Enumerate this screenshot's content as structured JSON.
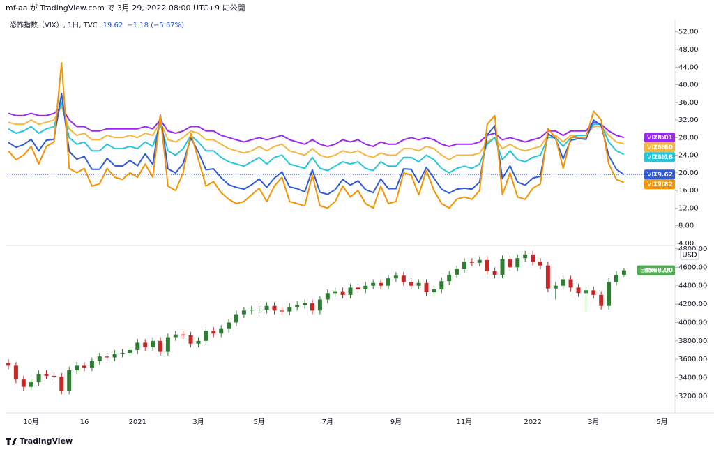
{
  "header": {
    "text": "mf-aa が TradingView.com で 3月 29, 2022 08:00 UTC+9 に公開"
  },
  "logo": "TradingView",
  "chart_data": [
    {
      "type": "line",
      "legend": {
        "title": "恐怖指数（VIX）, 1日, TVC",
        "last": "19.62",
        "change": "−1.18 (−5.67%)"
      },
      "categories": [
        null,
        null,
        null,
        "10月",
        null,
        null,
        null,
        null,
        null,
        null,
        "16",
        null,
        null,
        null,
        null,
        null,
        null,
        "2021",
        null,
        null,
        null,
        null,
        null,
        null,
        null,
        "3月",
        null,
        null,
        null,
        null,
        null,
        null,
        null,
        "5月",
        null,
        null,
        null,
        null,
        null,
        null,
        null,
        null,
        "7月",
        null,
        null,
        null,
        null,
        null,
        null,
        null,
        null,
        "9月",
        null,
        null,
        null,
        null,
        null,
        null,
        null,
        null,
        "11月",
        null,
        null,
        null,
        null,
        null,
        null,
        null,
        null,
        "2022",
        null,
        null,
        null,
        null,
        null,
        null,
        null,
        "3月",
        null,
        null,
        null,
        null,
        null,
        null,
        null,
        null,
        "5月",
        null,
        null,
        null
      ],
      "ylim": [
        3.5,
        53.7
      ],
      "yticks": [
        {
          "value": 4,
          "label": "4.00"
        },
        {
          "value": 8,
          "label": "8.00"
        },
        {
          "value": 12,
          "label": "12.00"
        },
        {
          "value": 16,
          "label": "16.00"
        },
        {
          "value": 20,
          "label": "20.00"
        },
        {
          "value": 24,
          "label": "24.00"
        },
        {
          "value": 28,
          "label": "28.00"
        },
        {
          "value": 32,
          "label": "32.00"
        },
        {
          "value": 36,
          "label": "36.00"
        },
        {
          "value": 40,
          "label": "40.00"
        },
        {
          "value": 44,
          "label": "44.00"
        },
        {
          "value": 48,
          "label": "48.00"
        },
        {
          "value": 52,
          "label": "52.00"
        }
      ],
      "series": [
        {
          "name": "VIX1Y",
          "badge": "28.01",
          "color": "#9c27f0",
          "values": [
            33.5,
            33,
            33,
            33.5,
            33,
            33,
            33.5,
            35,
            32,
            30.5,
            30.5,
            29.5,
            29.5,
            30,
            30,
            30,
            30,
            30,
            30.5,
            30,
            32,
            29.5,
            29,
            29.5,
            30.5,
            30.5,
            29.5,
            29.5,
            28.5,
            28,
            27.5,
            27,
            27.5,
            28,
            27.5,
            28,
            28.5,
            27.5,
            27,
            26.5,
            27.5,
            26.5,
            26,
            26.5,
            27.5,
            27,
            27.5,
            26.5,
            26,
            27,
            26.5,
            26.5,
            27.5,
            28,
            27.5,
            28,
            27.5,
            26.5,
            26,
            26.5,
            26.5,
            26.5,
            27,
            28.5,
            29,
            27.5,
            28,
            27.5,
            27,
            27.5,
            28,
            29.5,
            29.5,
            28.5,
            29.5,
            29.5,
            29.5,
            31.5,
            31,
            29.5,
            28.5,
            28.01,
            null,
            null,
            null,
            null,
            null,
            null,
            null,
            null
          ]
        },
        {
          "name": "VIX6M",
          "badge": "26.60",
          "color": "#f5b53f",
          "values": [
            31.5,
            31,
            31,
            32,
            31,
            31.5,
            32,
            35,
            30,
            28.5,
            29,
            27.5,
            27.5,
            28.5,
            28,
            28,
            28.5,
            28,
            29,
            28.5,
            31.5,
            27.5,
            27,
            28,
            29.5,
            29,
            27.5,
            27.5,
            26.5,
            25.5,
            25,
            24.5,
            25,
            26,
            25,
            26,
            26.5,
            25,
            24.5,
            24,
            25.5,
            24,
            23.5,
            24,
            25,
            24.5,
            25,
            24,
            23.5,
            24.5,
            24,
            24,
            25.5,
            25.5,
            25,
            26,
            25.5,
            24,
            23,
            24,
            24,
            24,
            24.5,
            27,
            28,
            25.5,
            26.5,
            25.5,
            25,
            25.5,
            26,
            28.5,
            28.5,
            27,
            28.5,
            28.5,
            28.5,
            30.5,
            30.5,
            28.5,
            27,
            26.6,
            null,
            null,
            null,
            null,
            null,
            null,
            null,
            null
          ]
        },
        {
          "name": "VIX3M",
          "badge": "24.18",
          "color": "#26c6da",
          "values": [
            30,
            29,
            29.5,
            30.5,
            29,
            30,
            30.5,
            36,
            28,
            26.5,
            27,
            25,
            25,
            26.5,
            25.5,
            25.5,
            26,
            25.5,
            27,
            26,
            31,
            25,
            24,
            25.5,
            28.5,
            27,
            25,
            25,
            23.5,
            22.5,
            22,
            21.5,
            22.5,
            23.5,
            22,
            23.5,
            24,
            22,
            21.5,
            21,
            23.5,
            21,
            20.5,
            21.5,
            22.5,
            22,
            22.5,
            21,
            20.5,
            22.5,
            21.5,
            21.5,
            23.5,
            23.5,
            22.5,
            24,
            23,
            21,
            20,
            21,
            21.5,
            21,
            22,
            26.5,
            28,
            23,
            25,
            23,
            22.5,
            23.5,
            24,
            28,
            28,
            26,
            28,
            28.5,
            28.5,
            31,
            31,
            27,
            25,
            24.18,
            null,
            null,
            null,
            null,
            null,
            null,
            null,
            null
          ]
        },
        {
          "name": "VIX",
          "badge": "19.62",
          "color": "#2f5bd9",
          "values": [
            26.9,
            25.8,
            26.4,
            27.6,
            25,
            27.4,
            27.6,
            38,
            24.9,
            23.1,
            23.7,
            20.8,
            20.8,
            23.3,
            21.6,
            21.5,
            22.8,
            21.6,
            24.3,
            21.9,
            33.1,
            20.9,
            19.97,
            22.1,
            27.9,
            24.7,
            20.7,
            20.9,
            18.9,
            17.3,
            16.7,
            16.3,
            17.3,
            18.6,
            16.7,
            18.8,
            20.2,
            16.8,
            16.4,
            15.7,
            20.7,
            15.6,
            15.1,
            16.2,
            18.5,
            17.2,
            18.2,
            16.2,
            15.5,
            18.6,
            16.4,
            16.4,
            20.9,
            20.8,
            17.8,
            21.2,
            18.8,
            16.3,
            15.4,
            16.3,
            16.5,
            16.3,
            17.9,
            28.6,
            30.7,
            18.7,
            21.6,
            17.9,
            17.2,
            18.8,
            19.2,
            28.9,
            27.7,
            23.2,
            27.4,
            27.8,
            27.6,
            31.98,
            30.8,
            23.9,
            20.8,
            19.62,
            null,
            null,
            null,
            null,
            null,
            null,
            null,
            null
          ]
        },
        {
          "name": "VIX9D",
          "badge": "17.82",
          "color": "#f59300",
          "values": [
            25,
            23,
            24,
            26,
            22,
            26,
            27,
            45,
            21,
            20,
            21,
            17,
            17.5,
            21,
            19,
            18.5,
            20,
            19,
            22,
            19,
            33,
            17,
            16,
            20,
            29,
            23,
            17,
            18,
            15.5,
            14,
            13,
            13.5,
            15,
            16.5,
            13.5,
            17,
            19,
            13.5,
            13,
            12.5,
            19.5,
            12.5,
            12,
            13.5,
            17,
            14.5,
            16,
            13,
            12,
            17,
            13,
            13.5,
            20,
            19.5,
            15,
            20.5,
            16,
            13,
            12,
            14,
            14.5,
            14,
            16,
            31,
            33,
            15,
            20,
            14.5,
            14,
            16.5,
            17.5,
            30,
            28,
            21,
            28,
            28,
            28,
            34,
            32,
            22,
            18.5,
            17.82,
            null,
            null,
            null,
            null,
            null,
            null,
            null,
            null
          ]
        }
      ]
    },
    {
      "type": "candlestick",
      "unit": "USD",
      "ylim": [
        3017,
        4838
      ],
      "yticks": [
        {
          "value": 3200,
          "label": "3200.00"
        },
        {
          "value": 3400,
          "label": "3400.00"
        },
        {
          "value": 3600,
          "label": "3600.00"
        },
        {
          "value": 3800,
          "label": "3800.00"
        },
        {
          "value": 4000,
          "label": "4000.00"
        },
        {
          "value": 4200,
          "label": "4200.00"
        },
        {
          "value": 4400,
          "label": "4400.00"
        },
        {
          "value": 4600,
          "label": "4600.00"
        },
        {
          "value": 4800,
          "label": "4800.00"
        }
      ],
      "series": [
        {
          "name": "ESM2022",
          "badge": "4568.00",
          "color": "#4caf50",
          "up_color": "#2e7d32",
          "down_color": "#c62828",
          "open": [
            3560,
            3530,
            3380,
            3300,
            3350,
            3440,
            3420,
            3410,
            3260,
            3480,
            3530,
            3510,
            3580,
            3630,
            3620,
            3660,
            3670,
            3700,
            3780,
            3730,
            3800,
            3680,
            3840,
            3870,
            3860,
            3770,
            3800,
            3910,
            3880,
            3930,
            4000,
            4090,
            4130,
            4140,
            4140,
            4180,
            4130,
            4120,
            4170,
            4190,
            4210,
            4130,
            4250,
            4320,
            4340,
            4300,
            4380,
            4360,
            4400,
            4430,
            4400,
            4480,
            4510,
            4440,
            4400,
            4430,
            4330,
            4360,
            4450,
            4520,
            4580,
            4660,
            4650,
            4680,
            4560,
            4520,
            4690,
            4600,
            4700,
            4740,
            4660,
            4620,
            4370,
            4400,
            4470,
            4380,
            4320,
            4350,
            4300,
            4180,
            4440,
            4520,
            null,
            null,
            null,
            null,
            null,
            null,
            null,
            null
          ],
          "high": [
            3600,
            3570,
            3420,
            3390,
            3480,
            3480,
            3460,
            3450,
            3520,
            3570,
            3570,
            3620,
            3670,
            3670,
            3700,
            3710,
            3740,
            3820,
            3820,
            3840,
            3840,
            3880,
            3910,
            3910,
            3900,
            3840,
            3950,
            3950,
            3970,
            4040,
            4130,
            4170,
            4180,
            4180,
            4220,
            4220,
            4170,
            4210,
            4230,
            4250,
            4250,
            4290,
            4360,
            4380,
            4380,
            4420,
            4420,
            4440,
            4470,
            4470,
            4520,
            4550,
            4550,
            4480,
            4470,
            4470,
            4400,
            4490,
            4560,
            4620,
            4700,
            4700,
            4720,
            4720,
            4600,
            4730,
            4730,
            4740,
            4780,
            4780,
            4700,
            4660,
            4440,
            4510,
            4510,
            4420,
            4390,
            4390,
            4340,
            4480,
            4560,
            4590,
            null,
            null,
            null,
            null,
            null,
            null,
            null,
            null
          ],
          "low": [
            3490,
            3340,
            3260,
            3260,
            3310,
            3380,
            3370,
            3220,
            3220,
            3440,
            3470,
            3470,
            3540,
            3580,
            3580,
            3620,
            3630,
            3660,
            3690,
            3690,
            3640,
            3640,
            3800,
            3820,
            3730,
            3730,
            3760,
            3840,
            3840,
            3890,
            3960,
            4050,
            4090,
            4100,
            4100,
            4090,
            4080,
            4080,
            4130,
            4150,
            4090,
            4090,
            4210,
            4280,
            4260,
            4260,
            4320,
            4320,
            4360,
            4360,
            4360,
            4440,
            4400,
            4360,
            4360,
            4290,
            4290,
            4320,
            4410,
            4480,
            4540,
            4610,
            4610,
            4520,
            4480,
            4480,
            4560,
            4560,
            4660,
            4620,
            4580,
            4330,
            4250,
            4360,
            4340,
            4280,
            4110,
            4260,
            4140,
            4140,
            4400,
            4500,
            null,
            null,
            null,
            null,
            null,
            null,
            null,
            null
          ],
          "close": [
            3530,
            3380,
            3300,
            3350,
            3440,
            3420,
            3410,
            3260,
            3480,
            3530,
            3510,
            3580,
            3630,
            3620,
            3660,
            3670,
            3700,
            3780,
            3730,
            3800,
            3680,
            3840,
            3870,
            3860,
            3770,
            3800,
            3910,
            3880,
            3930,
            4000,
            4090,
            4130,
            4140,
            4140,
            4180,
            4130,
            4120,
            4170,
            4190,
            4210,
            4130,
            4250,
            4320,
            4340,
            4300,
            4380,
            4360,
            4400,
            4430,
            4400,
            4480,
            4510,
            4440,
            4400,
            4430,
            4330,
            4360,
            4450,
            4520,
            4580,
            4660,
            4650,
            4680,
            4560,
            4520,
            4690,
            4600,
            4700,
            4740,
            4660,
            4620,
            4370,
            4400,
            4470,
            4380,
            4320,
            4350,
            4300,
            4180,
            4440,
            4520,
            4568,
            null,
            null,
            null,
            null,
            null,
            null,
            null,
            null
          ]
        }
      ]
    }
  ]
}
